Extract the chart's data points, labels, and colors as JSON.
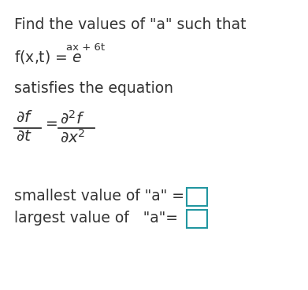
{
  "background_color": "#ffffff",
  "title_color": "#333333",
  "body_color": "#333333",
  "box_color": "#2196a0",
  "partial_color": "#1a237e",
  "figsize": [
    3.91,
    3.69
  ],
  "dpi": 100,
  "line1": "Find the values of \"a\" such that",
  "line3": "satisfies the equation",
  "line5": "smallest value of \"a\" =",
  "line6": "largest value of   \"a\"="
}
